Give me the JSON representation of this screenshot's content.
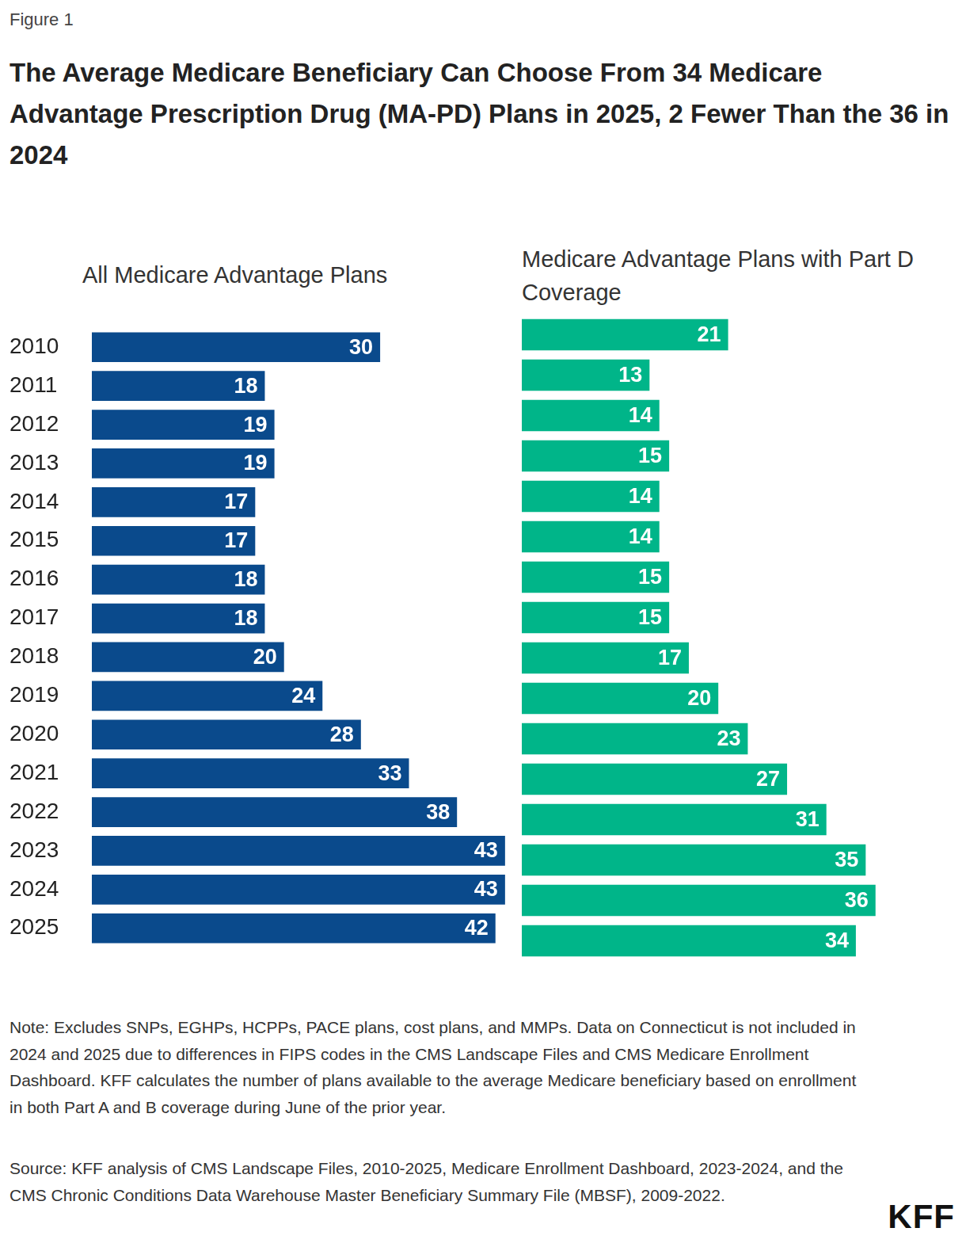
{
  "header": {
    "label": "Figure 1",
    "title": "The Average Medicare Beneficiary Can Choose From 34 Medicare Advantage Prescription Drug (MA-PD) Plans in 2025, 2 Fewer Than the 36 in 2024"
  },
  "chart_data": [
    {
      "type": "bar",
      "orientation": "horizontal",
      "title": "All Medicare Advantage Plans",
      "categories": [
        "2010",
        "2011",
        "2012",
        "2013",
        "2014",
        "2015",
        "2016",
        "2017",
        "2018",
        "2019",
        "2020",
        "2021",
        "2022",
        "2023",
        "2024",
        "2025"
      ],
      "values": [
        30,
        18,
        19,
        19,
        17,
        17,
        18,
        18,
        20,
        24,
        28,
        33,
        38,
        43,
        43,
        42
      ],
      "color": "#0a4a8c",
      "xlim": [
        0,
        44
      ],
      "grid": false,
      "data_labels": true,
      "tick_labels": "y"
    },
    {
      "type": "bar",
      "orientation": "horizontal",
      "title": "Medicare Advantage Plans with Part D Coverage",
      "categories": [
        "2010",
        "2011",
        "2012",
        "2013",
        "2014",
        "2015",
        "2016",
        "2017",
        "2018",
        "2019",
        "2020",
        "2021",
        "2022",
        "2023",
        "2024",
        "2025"
      ],
      "values": [
        21,
        13,
        14,
        15,
        14,
        14,
        15,
        15,
        17,
        20,
        23,
        27,
        31,
        35,
        36,
        34
      ],
      "color": "#00b589",
      "xlim": [
        0,
        44
      ],
      "grid": false,
      "data_labels": true,
      "tick_labels": false
    }
  ],
  "footer": {
    "note": "Note: Excludes SNPs, EGHPs, HCPPs, PACE plans, cost plans, and MMPs. Data on Connecticut is not included in 2024 and 2025 due to differences in FIPS codes in the CMS Landscape Files and CMS Medicare Enrollment Dashboard. KFF calculates the number of plans available to the average Medicare beneficiary based on enrollment in both Part A and B coverage during June of the prior year.",
    "source": "Source: KFF analysis of CMS Landscape Files, 2010-2025, Medicare Enrollment Dashboard, 2023-2024, and the CMS Chronic Conditions Data Warehouse Master Beneficiary Summary File (MBSF), 2009-2022.",
    "logo": "KFF"
  }
}
